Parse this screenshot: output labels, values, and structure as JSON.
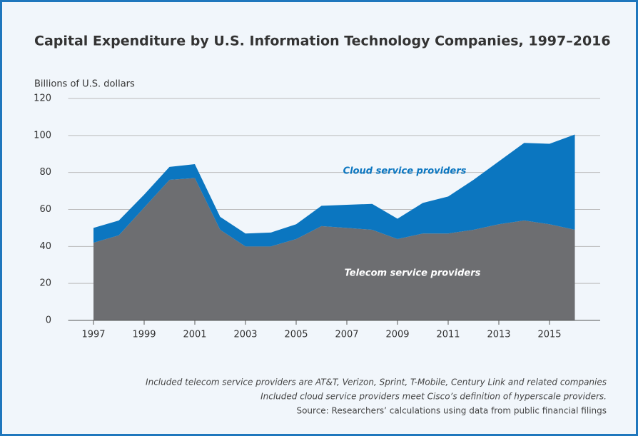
{
  "chart_data": {
    "type": "stacked_area",
    "title": "Capital Expenditure by U.S. Information Technology Companies, 1997–2016",
    "y_label": "Billions of U.S. dollars",
    "x": [
      1997,
      1998,
      1999,
      2000,
      2001,
      2002,
      2003,
      2004,
      2005,
      2006,
      2007,
      2008,
      2009,
      2010,
      2011,
      2012,
      2013,
      2014,
      2015,
      2016
    ],
    "series": [
      {
        "name": "Telecom service providers",
        "color": "#6d6e71",
        "values": [
          42,
          46,
          61,
          76,
          77,
          49,
          40,
          40,
          44,
          51,
          50,
          49,
          44,
          47,
          47,
          49,
          52,
          54,
          52,
          49
        ]
      },
      {
        "name": "Cloud service providers",
        "color": "#0b76c0",
        "values": [
          8,
          8,
          7,
          7,
          7.5,
          7,
          7,
          7.5,
          8,
          11,
          12.5,
          14,
          11,
          16.5,
          20,
          27,
          34,
          42,
          43.5,
          51.5
        ]
      }
    ],
    "xlim": [
      1996,
      2017
    ],
    "xticks": [
      1997,
      1999,
      2001,
      2003,
      2005,
      2007,
      2009,
      2011,
      2013,
      2015
    ],
    "ylim": [
      0,
      120
    ],
    "yticks": [
      0,
      20,
      40,
      60,
      80,
      100,
      120
    ],
    "grid": true,
    "notes": [
      "Included telecom service providers are AT&T, Verizon, Sprint, T-Mobile, Century Link and related companies",
      "Included cloud service providers meet Cisco’s definition of hyperscale providers.",
      "Source: Researchers’ calculations using data from public financial filings"
    ]
  }
}
